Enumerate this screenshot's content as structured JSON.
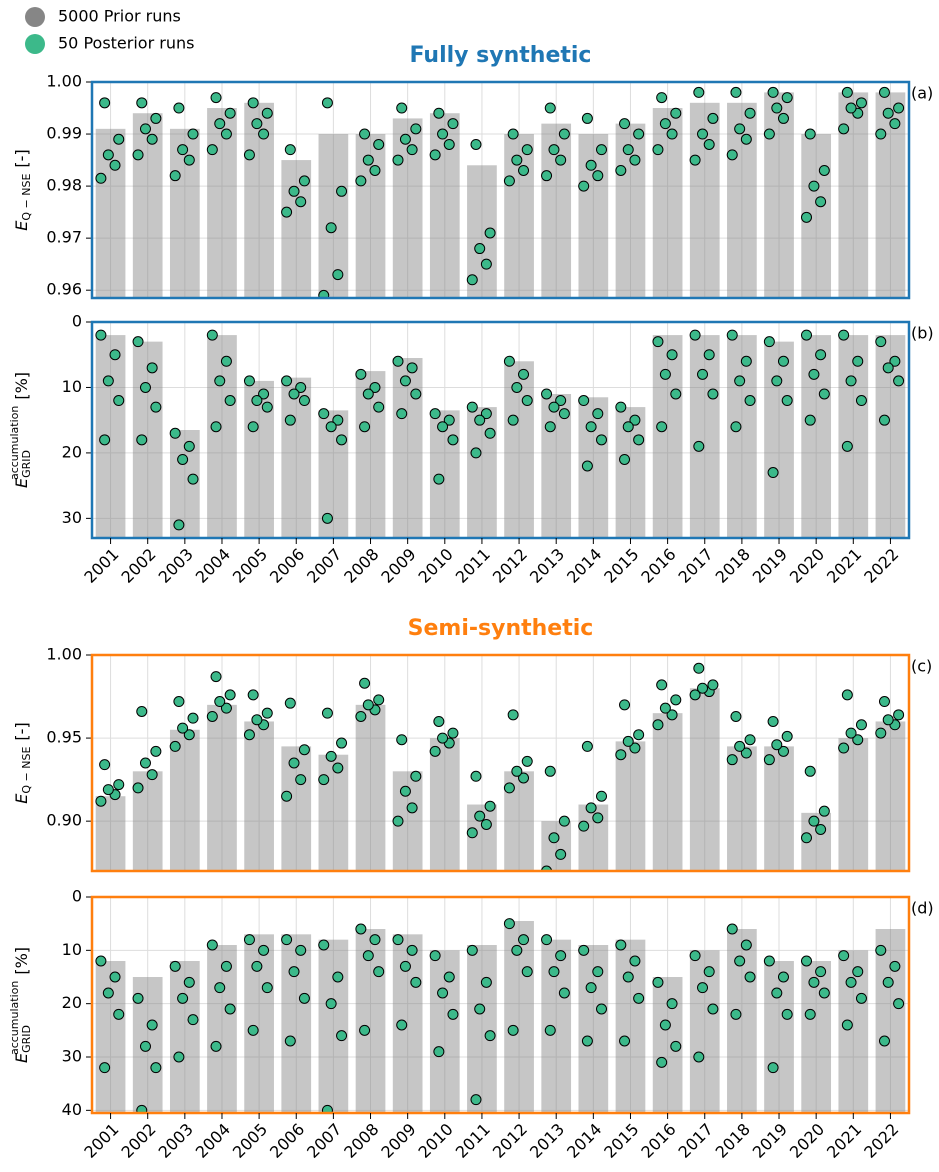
{
  "chart_data": [
    {
      "type": "strip",
      "title": "Fully synthetic",
      "annotation": "(a)",
      "ylabel": "E",
      "ylabel_sub": "Q − NSE",
      "ylabel_unit": "[-]",
      "ylim": [
        0.9585,
        1.0
      ],
      "yticks": [
        0.96,
        0.97,
        0.98,
        0.99,
        {
          "value": 1.0,
          "label": "1.00"
        }
      ],
      "grid": true,
      "frame_color": "#1f77b4",
      "series": [
        {
          "name": "5000 Prior runs",
          "color": "#808080",
          "values": [
            0.991,
            0.994,
            0.991,
            0.995,
            0.996,
            0.985,
            0.99,
            0.99,
            0.993,
            0.994,
            0.984,
            0.99,
            0.992,
            0.99,
            0.992,
            0.995,
            0.996,
            0.996,
            0.998,
            0.99,
            0.998,
            0.998
          ]
        },
        {
          "name": "50 Posterior runs",
          "color": "#3cb98a",
          "values": [
            [
              0.9815,
              0.984,
              0.986,
              0.989,
              0.996
            ],
            [
              0.986,
              0.989,
              0.991,
              0.993,
              0.996
            ],
            [
              0.982,
              0.985,
              0.987,
              0.99,
              0.995
            ],
            [
              0.987,
              0.99,
              0.992,
              0.994,
              0.997
            ],
            [
              0.986,
              0.99,
              0.992,
              0.994,
              0.996
            ],
            [
              0.975,
              0.977,
              0.979,
              0.981,
              0.987
            ],
            [
              0.959,
              0.963,
              0.972,
              0.979,
              0.996
            ],
            [
              0.981,
              0.983,
              0.985,
              0.988,
              0.99
            ],
            [
              0.985,
              0.987,
              0.989,
              0.991,
              0.995
            ],
            [
              0.986,
              0.988,
              0.99,
              0.992,
              0.994
            ],
            [
              0.962,
              0.965,
              0.968,
              0.971,
              0.988
            ],
            [
              0.981,
              0.983,
              0.985,
              0.987,
              0.99
            ],
            [
              0.982,
              0.985,
              0.987,
              0.99,
              0.995
            ],
            [
              0.98,
              0.982,
              0.984,
              0.987,
              0.993
            ],
            [
              0.983,
              0.985,
              0.987,
              0.99,
              0.992
            ],
            [
              0.987,
              0.99,
              0.992,
              0.994,
              0.997
            ],
            [
              0.985,
              0.988,
              0.99,
              0.993,
              0.998
            ],
            [
              0.986,
              0.989,
              0.991,
              0.994,
              0.998
            ],
            [
              0.99,
              0.993,
              0.995,
              0.997,
              0.998
            ],
            [
              0.974,
              0.977,
              0.98,
              0.983,
              0.99
            ],
            [
              0.991,
              0.994,
              0.995,
              0.996,
              0.998
            ],
            [
              0.99,
              0.992,
              0.994,
              0.995,
              0.998
            ]
          ]
        }
      ]
    },
    {
      "type": "strip",
      "annotation": "(b)",
      "ylabel": "E",
      "ylabel_sub": "GRID",
      "ylabel_sup": "accumulation",
      "ylabel_unit": "[%]",
      "categories": [
        "2001",
        "2002",
        "2003",
        "2004",
        "2005",
        "2006",
        "2007",
        "2008",
        "2009",
        "2010",
        "2011",
        "2012",
        "2013",
        "2014",
        "2015",
        "2016",
        "2017",
        "2018",
        "2019",
        "2020",
        "2021",
        "2022"
      ],
      "ylim": [
        33,
        0
      ],
      "yticks": [
        0,
        10,
        20,
        30
      ],
      "grid": true,
      "frame_color": "#1f77b4",
      "series": [
        {
          "color": "#808080",
          "values": [
            2,
            3,
            16.5,
            2,
            9,
            8.5,
            13.5,
            7.5,
            5.5,
            13.5,
            13,
            6,
            11,
            11.5,
            13,
            2,
            2,
            2,
            3,
            2,
            2,
            2
          ]
        },
        {
          "color": "#3cb98a",
          "values": [
            [
              2,
              5,
              9,
              12,
              18
            ],
            [
              3,
              7,
              10,
              13,
              18
            ],
            [
              17,
              19,
              21,
              24,
              31
            ],
            [
              2,
              6,
              9,
              12,
              16
            ],
            [
              9,
              11,
              12,
              13,
              16
            ],
            [
              9,
              10,
              11,
              12,
              15
            ],
            [
              14,
              15,
              16,
              18,
              30
            ],
            [
              8,
              10,
              11,
              13,
              16
            ],
            [
              6,
              7,
              9,
              11,
              14
            ],
            [
              14,
              15,
              16,
              18,
              24
            ],
            [
              13,
              14,
              15,
              17,
              20
            ],
            [
              6,
              8,
              10,
              12,
              15
            ],
            [
              11,
              12,
              13,
              14,
              16
            ],
            [
              12,
              14,
              16,
              18,
              22
            ],
            [
              13,
              15,
              16,
              18,
              21
            ],
            [
              3,
              5,
              8,
              11,
              16
            ],
            [
              2,
              5,
              8,
              11,
              19
            ],
            [
              2,
              6,
              9,
              12,
              16
            ],
            [
              3,
              6,
              9,
              12,
              23
            ],
            [
              2,
              5,
              8,
              11,
              15
            ],
            [
              2,
              6,
              9,
              12,
              19
            ],
            [
              3,
              6,
              7,
              9,
              15
            ]
          ]
        }
      ]
    },
    {
      "type": "strip",
      "title": "Semi-synthetic",
      "annotation": "(c)",
      "ylabel": "E",
      "ylabel_sub": "Q − NSE",
      "ylabel_unit": "[-]",
      "ylim": [
        0.87,
        1.0
      ],
      "yticks": [
        {
          "value": 0.9,
          "label": "0.90"
        },
        0.95,
        {
          "value": 1.0,
          "label": "1.00"
        }
      ],
      "grid": true,
      "frame_color": "#ff7f0e",
      "series": [
        {
          "color": "#808080",
          "values": [
            0.915,
            0.93,
            0.955,
            0.97,
            0.96,
            0.945,
            0.94,
            0.97,
            0.93,
            0.95,
            0.91,
            0.93,
            0.9,
            0.91,
            0.948,
            0.965,
            0.98,
            0.945,
            0.945,
            0.905,
            0.95,
            0.96
          ]
        },
        {
          "color": "#3cb98a",
          "values": [
            [
              0.912,
              0.916,
              0.919,
              0.922,
              0.934
            ],
            [
              0.92,
              0.928,
              0.935,
              0.942,
              0.966
            ],
            [
              0.945,
              0.952,
              0.956,
              0.962,
              0.972
            ],
            [
              0.963,
              0.968,
              0.972,
              0.976,
              0.987
            ],
            [
              0.952,
              0.958,
              0.961,
              0.965,
              0.976
            ],
            [
              0.915,
              0.925,
              0.935,
              0.943,
              0.971
            ],
            [
              0.925,
              0.932,
              0.939,
              0.947,
              0.965
            ],
            [
              0.963,
              0.967,
              0.97,
              0.973,
              0.983
            ],
            [
              0.9,
              0.908,
              0.918,
              0.927,
              0.949
            ],
            [
              0.942,
              0.947,
              0.95,
              0.953,
              0.96
            ],
            [
              0.893,
              0.898,
              0.903,
              0.909,
              0.927
            ],
            [
              0.92,
              0.926,
              0.93,
              0.936,
              0.964
            ],
            [
              0.87,
              0.88,
              0.89,
              0.9,
              0.93
            ],
            [
              0.897,
              0.902,
              0.908,
              0.915,
              0.945
            ],
            [
              0.94,
              0.944,
              0.948,
              0.952,
              0.97
            ],
            [
              0.958,
              0.964,
              0.968,
              0.973,
              0.982
            ],
            [
              0.976,
              0.978,
              0.98,
              0.982,
              0.992
            ],
            [
              0.937,
              0.941,
              0.945,
              0.949,
              0.963
            ],
            [
              0.937,
              0.942,
              0.946,
              0.951,
              0.96
            ],
            [
              0.89,
              0.895,
              0.9,
              0.906,
              0.93
            ],
            [
              0.944,
              0.949,
              0.953,
              0.958,
              0.976
            ],
            [
              0.953,
              0.958,
              0.961,
              0.964,
              0.972
            ]
          ]
        }
      ]
    },
    {
      "type": "strip",
      "annotation": "(d)",
      "ylabel": "E",
      "ylabel_sub": "GRID",
      "ylabel_sup": "accumulation",
      "ylabel_unit": "[%]",
      "categories": [
        "2001",
        "2002",
        "2003",
        "2004",
        "2005",
        "2006",
        "2007",
        "2008",
        "2009",
        "2010",
        "2011",
        "2012",
        "2013",
        "2014",
        "2015",
        "2016",
        "2017",
        "2018",
        "2019",
        "2020",
        "2021",
        "2022"
      ],
      "ylim": [
        40.5,
        0
      ],
      "yticks": [
        0,
        10,
        20,
        30,
        40
      ],
      "grid": true,
      "frame_color": "#ff7f0e",
      "series": [
        {
          "color": "#808080",
          "values": [
            12,
            15,
            12,
            9,
            7,
            7,
            8,
            6,
            7,
            10,
            9,
            4.5,
            8,
            9,
            8,
            15,
            10,
            6,
            12,
            12,
            10,
            6
          ]
        },
        {
          "color": "#3cb98a",
          "values": [
            [
              12,
              15,
              18,
              22,
              32
            ],
            [
              19,
              24,
              28,
              32,
              40
            ],
            [
              13,
              16,
              19,
              23,
              30
            ],
            [
              9,
              13,
              17,
              21,
              28
            ],
            [
              8,
              10,
              13,
              17,
              25
            ],
            [
              8,
              10,
              14,
              19,
              27
            ],
            [
              9,
              15,
              20,
              26,
              40
            ],
            [
              6,
              8,
              11,
              14,
              25
            ],
            [
              8,
              10,
              13,
              16,
              24
            ],
            [
              11,
              15,
              18,
              22,
              29
            ],
            [
              10,
              16,
              21,
              26,
              38
            ],
            [
              5,
              8,
              10,
              14,
              25
            ],
            [
              8,
              11,
              14,
              18,
              25
            ],
            [
              10,
              14,
              17,
              21,
              27
            ],
            [
              9,
              12,
              15,
              19,
              27
            ],
            [
              16,
              20,
              24,
              28,
              31
            ],
            [
              11,
              14,
              17,
              21,
              30
            ],
            [
              6,
              9,
              12,
              15,
              22
            ],
            [
              12,
              15,
              18,
              22,
              32
            ],
            [
              12,
              14,
              16,
              18,
              22
            ],
            [
              11,
              14,
              16,
              19,
              24
            ],
            [
              10,
              13,
              16,
              20,
              27
            ]
          ]
        }
      ]
    }
  ]
}
